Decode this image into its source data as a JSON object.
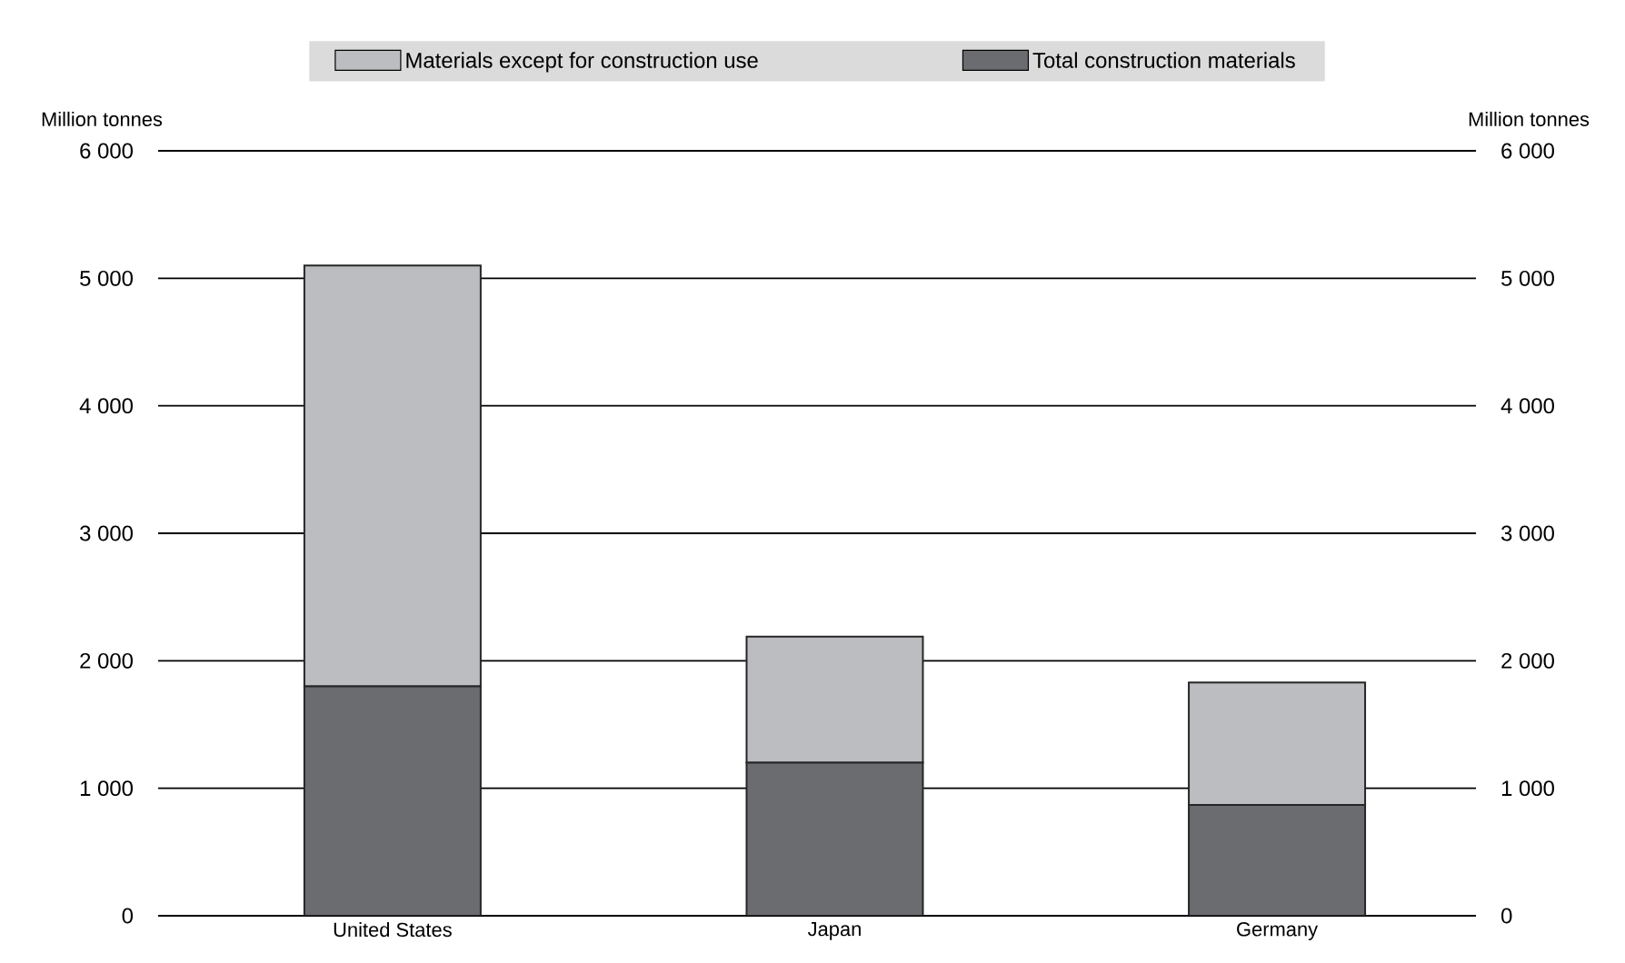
{
  "chart_data": {
    "type": "bar",
    "stacked": true,
    "categories": [
      "United States",
      "Japan",
      "Germany"
    ],
    "series": [
      {
        "name": "Total construction materials",
        "color": "#6b6c70",
        "values": [
          1800,
          1200,
          870
        ]
      },
      {
        "name": "Materials except for construction use",
        "color": "#bcbdc1",
        "values": [
          3300,
          990,
          960
        ]
      }
    ],
    "ylabel": "Million tonnes",
    "y2label": "Million tonnes",
    "ylim": [
      0,
      6000
    ],
    "yticks": [
      {
        "value": 0,
        "label": "0"
      },
      {
        "value": 1000,
        "label": "1 000"
      },
      {
        "value": 2000,
        "label": "2 000"
      },
      {
        "value": 3000,
        "label": "3 000"
      },
      {
        "value": 4000,
        "label": "4 000"
      },
      {
        "value": 5000,
        "label": "5 000"
      },
      {
        "value": 6000,
        "label": "6 000"
      }
    ],
    "y2lim": [
      0,
      6000
    ],
    "y2ticks": [
      {
        "value": 0,
        "label": "0"
      },
      {
        "value": 1000,
        "label": "1 000"
      },
      {
        "value": 2000,
        "label": "2 000"
      },
      {
        "value": 3000,
        "label": "3 000"
      },
      {
        "value": 4000,
        "label": "4 000"
      },
      {
        "value": 5000,
        "label": "5 000"
      },
      {
        "value": 6000,
        "label": "6 000"
      }
    ],
    "grid": "y",
    "legend": "top"
  }
}
